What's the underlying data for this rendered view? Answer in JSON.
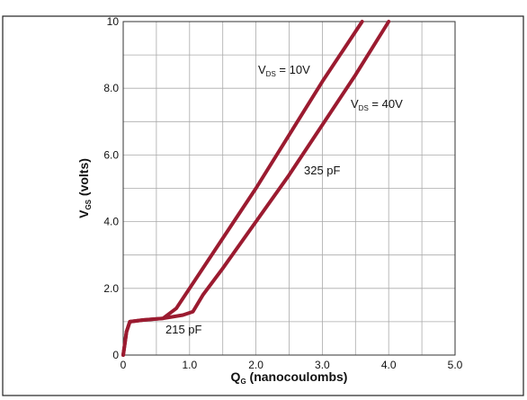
{
  "chart_data": {
    "type": "line",
    "x_label": {
      "main": "Q",
      "sub": "G",
      "rest": " (nanocoulombs)"
    },
    "y_label": {
      "main": "V",
      "sub": "GS",
      "rest": " (volts)"
    },
    "xlim": [
      0,
      5
    ],
    "ylim": [
      0,
      10
    ],
    "xticks": [
      0,
      {
        "value": 1,
        "label": "1.0"
      },
      {
        "value": 2,
        "label": "2.0"
      },
      {
        "value": 3,
        "label": "3.0"
      },
      {
        "value": 4,
        "label": "4.0"
      },
      {
        "value": 5,
        "label": "5.0"
      }
    ],
    "yticks": [
      0,
      {
        "value": 2,
        "label": "2.0"
      },
      {
        "value": 4,
        "label": "4.0"
      },
      {
        "value": 6,
        "label": "6.0"
      },
      {
        "value": 8,
        "label": "8.0"
      },
      10
    ],
    "xgrid_minor": [
      0.5,
      1.5,
      2.5,
      3.5,
      4.5
    ],
    "ygrid_minor": [
      1,
      3,
      5,
      7,
      9
    ],
    "grid": true,
    "series": [
      {
        "color": "#9b1b30",
        "x": [
          0,
          0.05,
          0.1,
          0.3,
          0.6,
          0.8,
          1.0,
          1.5,
          2.0,
          2.5,
          3.0,
          3.6
        ],
        "values": [
          0,
          0.7,
          1.0,
          1.05,
          1.1,
          1.4,
          2.0,
          3.5,
          5.0,
          6.6,
          8.2,
          10
        ]
      },
      {
        "color": "#9b1b30",
        "x": [
          0,
          0.05,
          0.1,
          0.3,
          0.6,
          0.9,
          1.05,
          1.2,
          1.5,
          2.0,
          2.5,
          3.0,
          3.5,
          4.0
        ],
        "values": [
          0,
          0.7,
          1.0,
          1.05,
          1.1,
          1.2,
          1.3,
          1.8,
          2.6,
          4.0,
          5.4,
          6.9,
          8.4,
          10
        ]
      }
    ],
    "annotations": [
      {
        "main": "V",
        "sub": "DS",
        "rest": " = 10V"
      },
      {
        "main": "V",
        "sub": "DS",
        "rest": " = 40V"
      },
      {
        "main": "325 pF"
      },
      {
        "main": "215 pF"
      }
    ]
  }
}
